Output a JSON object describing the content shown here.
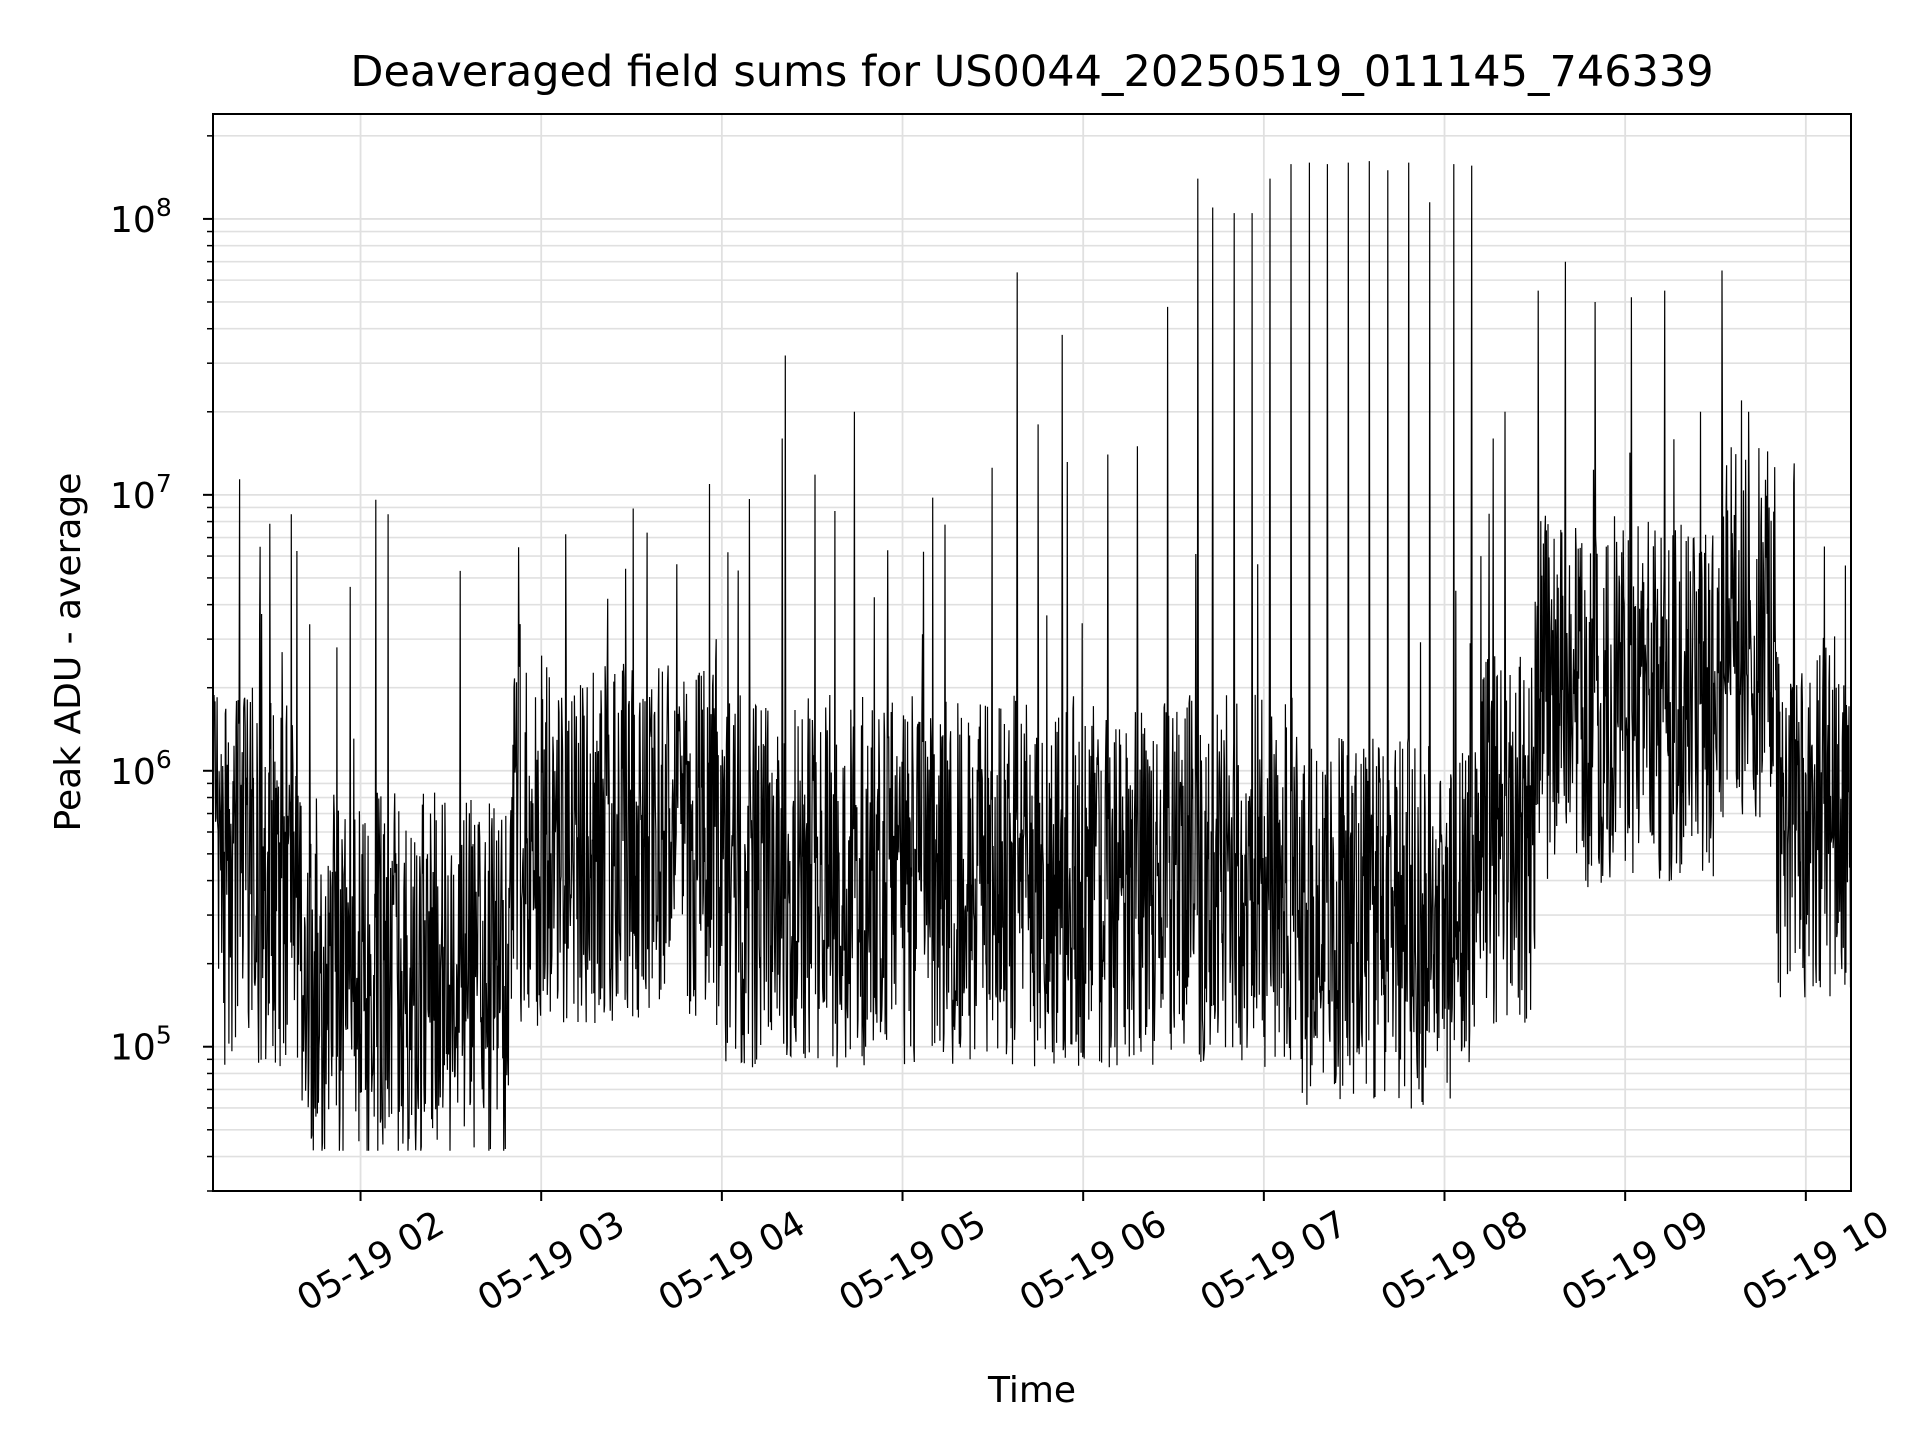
{
  "chart_data": {
    "type": "line",
    "title": "Deaveraged field sums for US0044_20250519_011145_746339",
    "xlabel": "Time",
    "ylabel": "Peak ADU - average",
    "yscale": "log",
    "xlim": [
      "05-19 01:11",
      "05-19 10:15"
    ],
    "ylim": [
      30000,
      240000000
    ],
    "x_ticks": [
      "05-19 02",
      "05-19 03",
      "05-19 04",
      "05-19 05",
      "05-19 06",
      "05-19 07",
      "05-19 08",
      "05-19 09",
      "05-19 10"
    ],
    "y_ticks": [
      {
        "base": "10",
        "exp": "5",
        "value": 100000
      },
      {
        "base": "10",
        "exp": "6",
        "value": 1000000
      },
      {
        "base": "10",
        "exp": "7",
        "value": 10000000
      },
      {
        "base": "10",
        "exp": "8",
        "value": 100000000
      }
    ],
    "grid": true,
    "line_color": "#000000",
    "grid_color": "#e0e0e0",
    "series": [
      {
        "x": [
          "05-19 01:11",
          "05-19 01:14",
          "05-19 01:17",
          "05-19 01:20",
          "05-19 01:24",
          "05-19 01:27",
          "05-19 01:30",
          "05-19 01:33",
          "05-19 01:37",
          "05-19 01:45",
          "05-19 01:52",
          "05-19 02:02",
          "05-19 02:05",
          "05-19 02:09",
          "05-19 02:33",
          "05-19 02:53",
          "05-19 03:00",
          "05-19 03:08",
          "05-19 03:22",
          "05-19 03:28",
          "05-19 03:35",
          "05-19 03:45",
          "05-19 03:58",
          "05-19 04:20",
          "05-19 04:21",
          "05-19 04:44",
          "05-19 04:55",
          "05-19 05:14",
          "05-19 05:38",
          "05-19 05:45",
          "05-19 05:53",
          "05-19 06:08",
          "05-19 06:18",
          "05-19 06:28",
          "05-19 06:38",
          "05-19 06:43",
          "05-19 06:50",
          "05-19 06:56",
          "05-19 07:02",
          "05-19 07:09",
          "05-19 07:15",
          "05-19 07:21",
          "05-19 07:28",
          "05-19 07:35",
          "05-19 07:41",
          "05-19 07:48",
          "05-19 07:55",
          "05-19 08:03",
          "05-19 08:09",
          "05-19 08:12",
          "05-19 08:20",
          "05-19 08:31",
          "05-19 08:40",
          "05-19 08:50",
          "05-19 09:02",
          "05-19 09:13",
          "05-19 09:25",
          "05-19 09:32",
          "05-19 09:41",
          "05-19 09:48",
          "05-19 09:56",
          "05-19 10:06",
          "05-19 10:10",
          "05-19 10:12"
        ],
        "y": [
          110000,
          280000,
          450000,
          250000,
          2000000,
          3700000,
          1200000,
          550000,
          8500000,
          500000,
          2800000,
          150000,
          9600000,
          8500000,
          5300000,
          3400000,
          90000,
          7200000,
          4200000,
          5400000,
          7300000,
          5600000,
          3000000,
          16000000,
          32000000,
          20000000,
          6300000,
          7800000,
          64000000,
          18000000,
          38000000,
          14000000,
          15000000,
          48000000,
          140000000,
          110000000,
          105000000,
          105000000,
          140000000,
          158000000,
          160000000,
          158000000,
          160000000,
          162000000,
          150000000,
          160000000,
          115000000,
          158000000,
          156000000,
          6000000,
          20000000,
          55000000,
          70000000,
          50000000,
          52000000,
          55000000,
          20000000,
          65000000,
          20000000,
          1500000,
          13000000,
          6500000,
          2000000,
          1300000
        ]
      }
    ]
  }
}
